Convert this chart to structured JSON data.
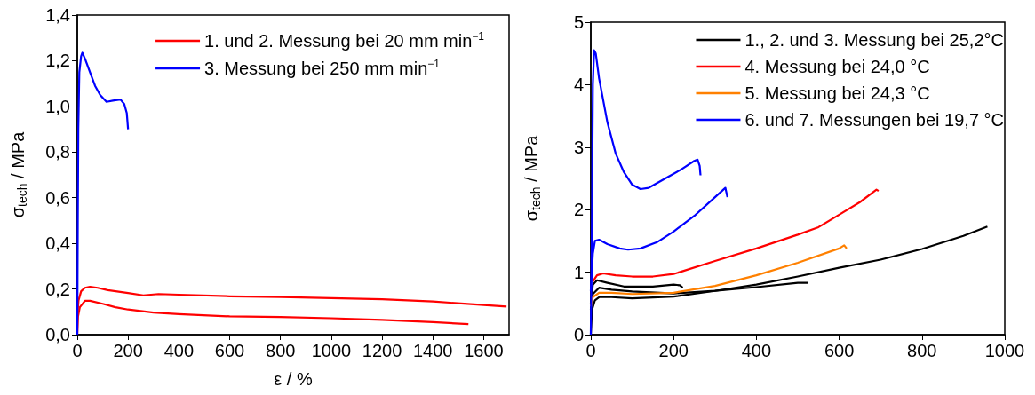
{
  "chart_data": [
    {
      "type": "line",
      "xlabel": "ε / %",
      "ylabel": "σ$_{tech}$ / MPa",
      "legend": "top right",
      "xlim": [
        0,
        1700
      ],
      "xticks": [
        0,
        200,
        400,
        600,
        800,
        1000,
        1200,
        1400,
        1600
      ],
      "ylim": [
        0,
        1.4
      ],
      "yticks": [
        {
          "value": 0,
          "label": "0,0"
        },
        {
          "value": 0.2,
          "label": "0,2"
        },
        {
          "value": 0.4,
          "label": "0,4"
        },
        {
          "value": 0.6,
          "label": "0,6"
        },
        {
          "value": 0.8,
          "label": "0,8"
        },
        {
          "value": 1.0,
          "label": "1,0"
        },
        {
          "value": 1.2,
          "label": "1,2"
        },
        {
          "value": 1.4,
          "label": "1,4"
        }
      ],
      "series": [
        {
          "name": "1. und 2. Messung bei 20 mm min$^{−1}$",
          "color": "#ff0000",
          "x": [
            0,
            5,
            15,
            30,
            50,
            80,
            120,
            200,
            260,
            320,
            400,
            600,
            800,
            1000,
            1200,
            1400,
            1600,
            1690
          ],
          "values": [
            0.08,
            0.15,
            0.19,
            0.205,
            0.21,
            0.205,
            0.195,
            0.182,
            0.172,
            0.178,
            0.175,
            0.168,
            0.165,
            0.16,
            0.155,
            0.145,
            0.13,
            0.123
          ]
        },
        {
          "color": "#ff0000",
          "x": [
            0,
            3,
            10,
            30,
            50,
            100,
            150,
            200,
            300,
            400,
            600,
            800,
            1000,
            1200,
            1400,
            1540
          ],
          "values": [
            0,
            0.08,
            0.12,
            0.148,
            0.148,
            0.135,
            0.12,
            0.11,
            0.097,
            0.09,
            0.08,
            0.077,
            0.072,
            0.065,
            0.055,
            0.046
          ]
        },
        {
          "name": "3. Messung bei 250 mm min$^{−1}$",
          "color": "#0000ff",
          "x": [
            0,
            2,
            4,
            8,
            15,
            20,
            30,
            50,
            70,
            90,
            115,
            140,
            170,
            185,
            195,
            200
          ],
          "values": [
            0,
            0.5,
            0.9,
            1.15,
            1.22,
            1.235,
            1.21,
            1.15,
            1.09,
            1.05,
            1.02,
            1.025,
            1.03,
            1.01,
            0.97,
            0.9
          ]
        }
      ]
    },
    {
      "type": "line",
      "ylabel": "σ$_{tech}$ / MPa",
      "legend": "top right",
      "xlim": [
        0,
        1000
      ],
      "xticks": [
        0,
        200,
        400,
        600,
        800,
        1000
      ],
      "ylim": [
        0,
        5
      ],
      "yticks": [
        0,
        1,
        2,
        3,
        4,
        5
      ],
      "series": [
        {
          "name": "1., 2. und 3. Messung bei 25,2°C",
          "color": "#000000",
          "x": [
            0,
            5,
            15,
            40,
            80,
            150,
            200,
            215,
            222
          ],
          "values": [
            0.5,
            0.8,
            0.87,
            0.83,
            0.77,
            0.77,
            0.8,
            0.79,
            0.75
          ]
        },
        {
          "color": "#000000",
          "x": [
            0,
            5,
            20,
            50,
            100,
            200,
            300,
            400,
            500,
            525
          ],
          "values": [
            0.4,
            0.65,
            0.75,
            0.72,
            0.69,
            0.66,
            0.7,
            0.76,
            0.83,
            0.83
          ]
        },
        {
          "color": "#000000",
          "x": [
            0,
            3,
            10,
            20,
            50,
            100,
            200,
            300,
            400,
            500,
            600,
            700,
            800,
            900,
            958
          ],
          "values": [
            0,
            0.4,
            0.55,
            0.6,
            0.6,
            0.58,
            0.61,
            0.7,
            0.8,
            0.93,
            1.07,
            1.2,
            1.37,
            1.58,
            1.73
          ]
        },
        {
          "name": "4. Messung bei 24,0 °C",
          "color": "#ff0000",
          "x": [
            5,
            15,
            30,
            60,
            100,
            150,
            200,
            300,
            400,
            500,
            550,
            600,
            650,
            690,
            695
          ],
          "values": [
            0.85,
            0.95,
            0.98,
            0.95,
            0.93,
            0.93,
            0.97,
            1.18,
            1.38,
            1.6,
            1.72,
            1.92,
            2.12,
            2.32,
            2.3
          ]
        },
        {
          "name": "5. Messung bei 24,3 °C",
          "color": "#ff8000",
          "x": [
            0,
            5,
            20,
            50,
            100,
            200,
            300,
            400,
            500,
            600,
            612,
            618
          ],
          "values": [
            0.45,
            0.6,
            0.67,
            0.67,
            0.65,
            0.67,
            0.78,
            0.95,
            1.15,
            1.38,
            1.43,
            1.38
          ]
        },
        {
          "name": "6. und 7. Messungen bei 19,7 °C",
          "color": "#0000ff",
          "x": [
            0,
            3,
            5,
            8,
            12,
            20,
            40,
            60,
            80,
            100,
            120,
            140,
            180,
            220,
            250,
            258,
            263,
            265
          ],
          "values": [
            0,
            2,
            4,
            4.55,
            4.5,
            4.1,
            3.4,
            2.9,
            2.6,
            2.4,
            2.33,
            2.35,
            2.5,
            2.65,
            2.78,
            2.8,
            2.7,
            2.55
          ]
        },
        {
          "color": "#0000ff",
          "x": [
            0,
            5,
            10,
            20,
            40,
            70,
            90,
            120,
            160,
            200,
            250,
            300,
            325,
            330
          ],
          "values": [
            0.7,
            1.3,
            1.5,
            1.52,
            1.45,
            1.38,
            1.36,
            1.38,
            1.48,
            1.65,
            1.9,
            2.2,
            2.35,
            2.2
          ]
        }
      ]
    }
  ]
}
